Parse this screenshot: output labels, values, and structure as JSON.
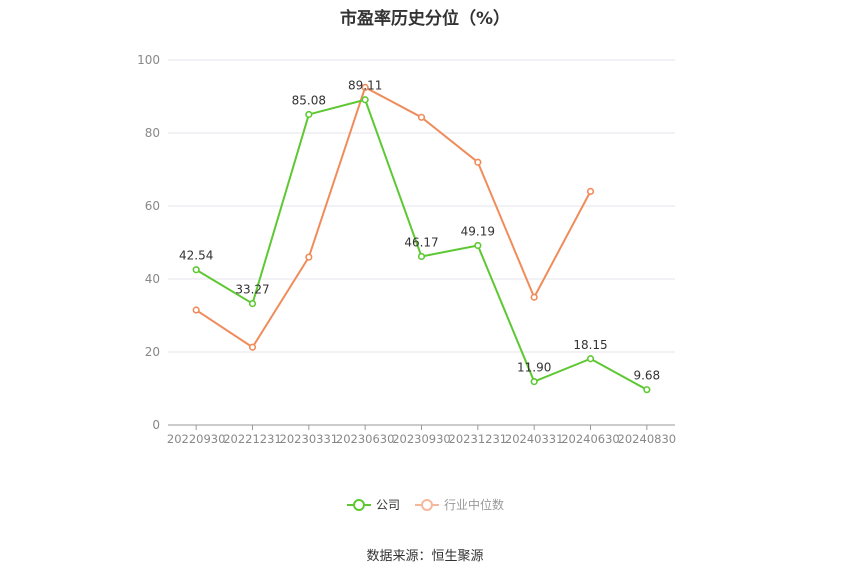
{
  "chart_data": {
    "type": "line",
    "title": "市盈率历史分位（%）",
    "categories": [
      "20220930",
      "20221231",
      "20230331",
      "20230630",
      "20230930",
      "20231231",
      "20240331",
      "20240630",
      "20240830"
    ],
    "ylim": [
      0,
      100
    ],
    "yticks": [
      0,
      20,
      40,
      60,
      80,
      100
    ],
    "grid": true,
    "legend_position": "bottom",
    "series": [
      {
        "name": "公司",
        "color": "#5ec832",
        "values": [
          42.54,
          33.27,
          85.08,
          89.11,
          46.17,
          49.19,
          11.9,
          18.15,
          9.68
        ],
        "labels": [
          "42.54",
          "33.27",
          "85.08",
          "89.11",
          "46.17",
          "49.19",
          "11.90",
          "18.15",
          "9.68"
        ]
      },
      {
        "name": "行业中位数",
        "color": "#f08c5a",
        "values": [
          31.5,
          21.3,
          46.0,
          92.5,
          84.3,
          72.0,
          35.0,
          64.0,
          null
        ]
      }
    ]
  },
  "source": "数据来源：恒生聚源"
}
